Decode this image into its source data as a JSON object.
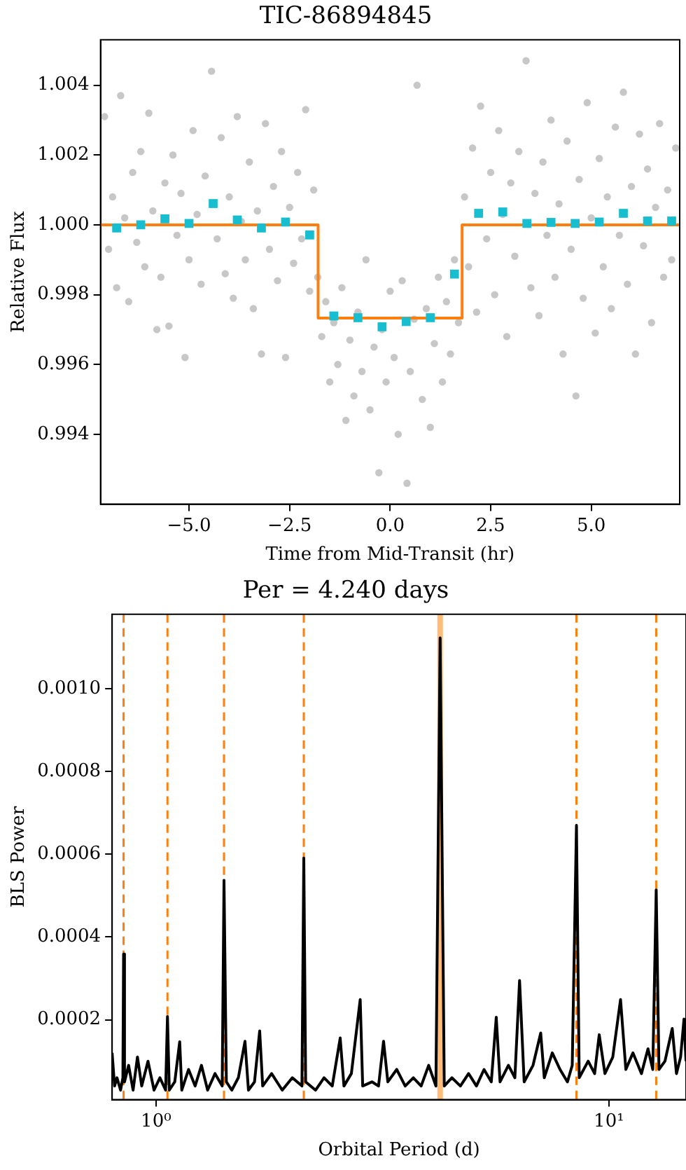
{
  "chart_data": [
    {
      "type": "scatter",
      "title": "TIC-86894845",
      "xlabel": "Time from Mid-Transit (hr)",
      "ylabel": "Relative Flux",
      "xlim": [
        -7.2,
        7.2
      ],
      "ylim": [
        0.992,
        1.0053
      ],
      "xticks": [
        {
          "value": -5,
          "label": "−5.0"
        },
        {
          "value": -2.5,
          "label": "−2.5"
        },
        {
          "value": 0,
          "label": "0.0"
        },
        {
          "value": 2.5,
          "label": "2.5"
        },
        {
          "value": 5,
          "label": "5.0"
        }
      ],
      "yticks": [
        0.994,
        0.996,
        0.998,
        {
          "value": 1,
          "label": "1.000"
        },
        1.002,
        1.004
      ],
      "series": [
        {
          "color": "#808080",
          "marker": "circle",
          "x": [
            -7.1,
            -7.0,
            -6.9,
            -6.8,
            -6.7,
            -6.6,
            -6.5,
            -6.4,
            -6.3,
            -6.2,
            -6.1,
            -6.0,
            -5.9,
            -5.8,
            -5.7,
            -5.6,
            -5.5,
            -5.4,
            -5.3,
            -5.2,
            -5.1,
            -5.0,
            -4.9,
            -4.8,
            -4.7,
            -4.6,
            -4.44,
            -4.3,
            -4.2,
            -4.1,
            -4.0,
            -3.9,
            -3.8,
            -3.7,
            -3.6,
            -3.5,
            -3.4,
            -3.3,
            -3.2,
            -3.1,
            -3.0,
            -2.9,
            -2.8,
            -2.7,
            -2.6,
            -2.5,
            -2.4,
            -2.3,
            -2.2,
            -2.1,
            -2.0,
            -1.9,
            -1.8,
            -1.7,
            -1.6,
            -1.5,
            -1.4,
            -1.3,
            -1.2,
            -1.1,
            -1.0,
            -0.9,
            -0.8,
            -0.7,
            -0.6,
            -0.5,
            -0.4,
            -0.28,
            -0.2,
            -0.1,
            0.0,
            0.1,
            0.2,
            0.3,
            0.42,
            0.5,
            0.6,
            0.67,
            0.8,
            0.9,
            1.0,
            1.1,
            1.2,
            1.3,
            1.4,
            1.5,
            1.6,
            1.7,
            1.85,
            1.95,
            2.05,
            2.15,
            2.25,
            2.4,
            2.5,
            2.6,
            2.7,
            2.8,
            2.9,
            3.0,
            3.1,
            3.2,
            3.38,
            3.5,
            3.6,
            3.7,
            3.8,
            3.9,
            4.0,
            4.1,
            4.2,
            4.3,
            4.4,
            4.5,
            4.62,
            4.7,
            4.8,
            4.9,
            5.0,
            5.1,
            5.2,
            5.3,
            5.4,
            5.5,
            5.6,
            5.7,
            5.8,
            5.9,
            6.0,
            6.1,
            6.2,
            6.3,
            6.4,
            6.5,
            6.6,
            6.7,
            6.8,
            6.9,
            7.0,
            7.1
          ],
          "values": [
            1.0031,
            0.9993,
            1.0008,
            0.9982,
            1.0037,
            1.0002,
            0.9978,
            1.0015,
            0.9995,
            1.0021,
            0.9988,
            1.0032,
            1.0004,
            0.997,
            0.9985,
            1.0012,
            0.9971,
            1.002,
            0.9997,
            1.0009,
            0.9962,
            0.999,
            1.0027,
            1.0003,
            0.9983,
            1.0014,
            1.0044,
            0.9996,
            1.0025,
            0.9986,
            1.0008,
            0.9979,
            1.0031,
            1.0001,
            0.999,
            1.0018,
            0.9976,
            1.0004,
            0.9963,
            1.0029,
            0.9993,
            1.0011,
            0.9984,
            1.0021,
            0.9962,
            1.0005,
            0.9989,
            1.0015,
            0.9996,
            1.0033,
            0.9981,
            1.001,
            0.9985,
            0.9968,
            0.9978,
            0.9955,
            0.9972,
            0.996,
            0.9982,
            0.9944,
            0.9967,
            0.9951,
            0.9975,
            0.9958,
            0.999,
            0.9947,
            0.9965,
            0.9929,
            0.997,
            0.9955,
            0.9981,
            0.9962,
            0.994,
            0.9984,
            0.9926,
            0.9958,
            0.9973,
            1.004,
            0.995,
            0.9976,
            0.9942,
            0.9966,
            0.9985,
            0.9955,
            0.9978,
            0.9963,
            0.999,
            0.9972,
            1.0008,
            0.9988,
            1.0022,
            0.9975,
            1.0034,
            0.9996,
            1.0015,
            0.998,
            1.0027,
            1.0003,
            0.9968,
            1.0012,
            0.9991,
            1.0021,
            1.0047,
            0.9982,
            1.0009,
            0.9974,
            1.0018,
            0.9997,
            1.003,
            0.9985,
            1.0006,
            0.9963,
            1.0024,
            0.9993,
            0.9951,
            1.0013,
            0.9979,
            1.0035,
            1.0002,
            0.9969,
            1.0019,
            0.9988,
            1.0008,
            0.9976,
            1.0028,
            0.9997,
            1.0038,
            0.9983,
            1.0011,
            0.9963,
            1.0026,
            0.9994,
            1.0016,
            0.9972,
            1.0005,
            1.0029,
            0.9985,
            1.001,
            0.999,
            1.0022
          ]
        },
        {
          "type": "step",
          "color": "#ff7f0e",
          "marker": "none",
          "x": [
            -7.2,
            -1.79,
            1.79,
            7.2
          ],
          "values": [
            1.0,
            0.99733,
            1.0,
            1.0
          ]
        },
        {
          "type": "scatter",
          "color": "#17becf",
          "marker": "square",
          "x": [
            -6.8,
            -6.2,
            -5.6,
            -5.0,
            -4.4,
            -3.8,
            -3.2,
            -2.6,
            -2.0,
            -1.4,
            -0.8,
            -0.2,
            0.4,
            1.0,
            1.6,
            2.2,
            2.8,
            3.4,
            4.0,
            4.6,
            5.2,
            5.8,
            6.4,
            7.0
          ],
          "values": [
            0.99991,
            1.0,
            1.00017,
            1.00004,
            1.00061,
            1.00014,
            0.99991,
            1.00008,
            0.99971,
            0.99739,
            0.99734,
            0.99708,
            0.99723,
            0.99734,
            0.99859,
            1.00033,
            1.00037,
            1.00004,
            1.00007,
            1.00004,
            1.00008,
            1.00033,
            1.00011,
            1.00011
          ],
          "errors": [
            8e-05,
            8e-05,
            8e-05,
            8e-05,
            8e-05,
            8e-05,
            8e-05,
            8e-05,
            8e-05,
            8e-05,
            8e-05,
            8e-05,
            8e-05,
            8e-05,
            8e-05,
            8e-05,
            8e-05,
            8e-05,
            8e-05,
            8e-05,
            8e-05,
            8e-05,
            8e-05,
            8e-05
          ]
        }
      ]
    },
    {
      "type": "line",
      "title": "Per = 4.240 days",
      "xlabel": "Orbital Period (d)",
      "ylabel": "BLS Power",
      "log": "x",
      "xlim": [
        0.8,
        14.8
      ],
      "ylim": [
        7e-06,
        0.00118
      ],
      "xticks": [
        {
          "value": 1,
          "label": "10⁰"
        },
        {
          "value": 10,
          "label": "10¹"
        }
      ],
      "yticks": [
        0.0002,
        0.0004,
        0.0006,
        0.0008,
        {
          "value": 0.001,
          "label": "0.0010"
        }
      ],
      "ref_lines": [
        {
          "axis": "x",
          "value": 0.848,
          "color": "#ff7f0e",
          "line_style": "dashed"
        },
        {
          "axis": "x",
          "value": 1.06,
          "color": "#ff7f0e",
          "line_style": "dashed"
        },
        {
          "axis": "x",
          "value": 1.413,
          "color": "#ff7f0e",
          "line_style": "dashed"
        },
        {
          "axis": "x",
          "value": 2.12,
          "color": "#ff7f0e",
          "line_style": "dashed"
        },
        {
          "axis": "x",
          "value": 8.48,
          "color": "#ff7f0e",
          "line_style": "dashed"
        },
        {
          "axis": "x",
          "value": 12.72,
          "color": "#ff7f0e",
          "line_style": "dashed"
        }
      ],
      "bands": [
        {
          "axis": "x",
          "from": 4.18,
          "to": 4.3,
          "color": "#ffbb78"
        }
      ],
      "series": [
        {
          "color": "#000000",
          "x": [
            0.8,
            0.81,
            0.82,
            0.835,
            0.845,
            0.848,
            0.852,
            0.87,
            0.89,
            0.91,
            0.93,
            0.96,
            0.99,
            1.02,
            1.05,
            1.06,
            1.07,
            1.1,
            1.128,
            1.14,
            1.18,
            1.22,
            1.26,
            1.3,
            1.35,
            1.4,
            1.413,
            1.43,
            1.47,
            1.52,
            1.572,
            1.6,
            1.65,
            1.694,
            1.72,
            1.8,
            1.9,
            2.0,
            2.1,
            2.12,
            2.14,
            2.25,
            2.35,
            2.45,
            2.551,
            2.6,
            2.7,
            2.824,
            2.86,
            3.0,
            3.1,
            3.18,
            3.25,
            3.4,
            3.55,
            3.7,
            3.85,
            4.0,
            4.15,
            4.24,
            4.33,
            4.5,
            4.7,
            4.9,
            5.1,
            5.3,
            5.5,
            5.64,
            5.75,
            6.0,
            6.2,
            6.35,
            6.5,
            6.8,
            7.07,
            7.2,
            7.5,
            7.8,
            8.1,
            8.3,
            8.48,
            8.6,
            9.0,
            9.3,
            9.52,
            9.8,
            10.2,
            10.61,
            10.9,
            11.3,
            11.8,
            12.2,
            12.5,
            12.72,
            12.9,
            13.3,
            13.8,
            14.1,
            14.4,
            14.65,
            14.8
          ],
          "values": [
            0.00012,
            4e-05,
            6e-05,
            3e-05,
            6e-05,
            0.000359,
            5e-05,
            9e-05,
            3e-05,
            0.00011,
            4e-05,
            0.0001,
            3e-05,
            6e-05,
            3e-05,
            0.000208,
            3e-05,
            5e-05,
            0.000147,
            3e-05,
            8e-05,
            4e-05,
            9e-05,
            3e-05,
            7e-05,
            4e-05,
            0.000537,
            5e-05,
            3e-05,
            6e-05,
            0.000148,
            3e-05,
            5e-05,
            0.000173,
            4e-05,
            7e-05,
            3e-05,
            6e-05,
            4e-05,
            0.000591,
            5e-05,
            3e-05,
            6e-05,
            4e-05,
            0.000156,
            4e-05,
            7e-05,
            0.000249,
            4e-05,
            5e-05,
            4e-05,
            0.000148,
            5e-05,
            8e-05,
            4e-05,
            6e-05,
            4e-05,
            9e-05,
            4e-05,
            0.001123,
            4e-05,
            6e-05,
            4e-05,
            7e-05,
            4e-05,
            8e-05,
            5e-05,
            0.000206,
            5e-05,
            9e-05,
            6e-05,
            0.000295,
            5e-05,
            9e-05,
            0.000168,
            6e-05,
            0.00012,
            8e-05,
            5e-05,
            9e-05,
            0.00067,
            6e-05,
            0.0001,
            7e-05,
            0.000164,
            7e-05,
            0.00011,
            0.000249,
            8e-05,
            0.00012,
            7e-05,
            0.00013,
            8e-05,
            0.000514,
            8e-05,
            0.0001,
            0.000179,
            7e-05,
            0.00011,
            0.000202,
            0.0001
          ]
        }
      ]
    }
  ]
}
